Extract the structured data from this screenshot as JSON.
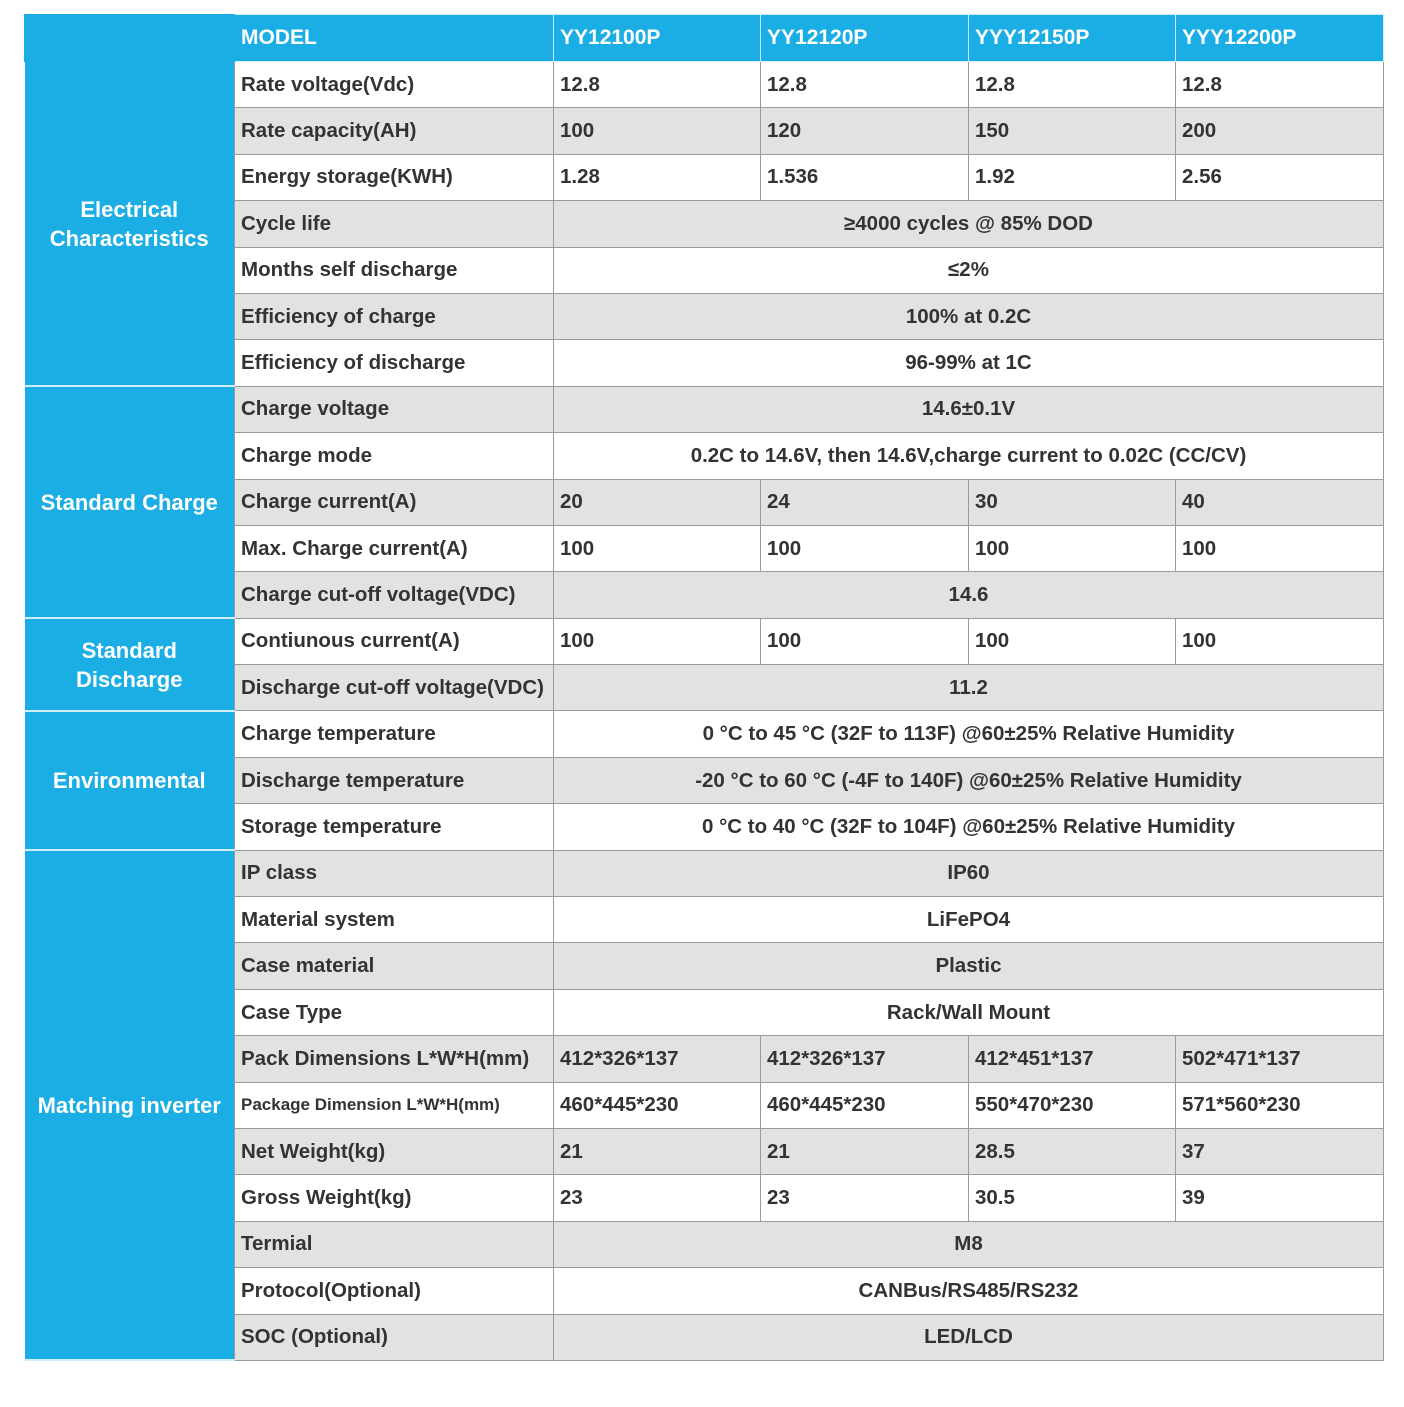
{
  "header": {
    "corner": "",
    "model_label": "MODEL",
    "models": [
      "YY12100P",
      "YY12120P",
      "YYY12150P",
      "YYY12200P"
    ]
  },
  "colors": {
    "accent": "#1aaee5",
    "row_alt": "#e2e2e2"
  },
  "categories": [
    {
      "label": "Electrical Characteristics",
      "rows": 7
    },
    {
      "label": "Standard Charge",
      "rows": 5
    },
    {
      "label": "Standard Discharge",
      "rows": 2
    },
    {
      "label": "Environmental",
      "rows": 3
    },
    {
      "label": "Matching inverter",
      "rows": 11
    }
  ],
  "rows": [
    {
      "label": "Rate voltage(Vdc)",
      "values": [
        "12.8",
        "12.8",
        "12.8",
        "12.8"
      ]
    },
    {
      "label": "Rate capacity(AH)",
      "values": [
        "100",
        "120",
        "150",
        "200"
      ]
    },
    {
      "label": "Energy storage(KWH)",
      "values": [
        "1.28",
        "1.536",
        "1.92",
        "2.56"
      ]
    },
    {
      "label": "Cycle life",
      "value": "≥4000 cycles @ 85% DOD"
    },
    {
      "label": "Months self discharge",
      "value": "≤2%"
    },
    {
      "label": "Efficiency of charge",
      "value": "100% at 0.2C"
    },
    {
      "label": "Efficiency of discharge",
      "value": "96-99% at 1C"
    },
    {
      "label": "Charge voltage",
      "value": "14.6±0.1V"
    },
    {
      "label": "Charge mode",
      "value": "0.2C to 14.6V, then 14.6V,charge current to 0.02C (CC/CV)"
    },
    {
      "label": "Charge current(A)",
      "values": [
        "20",
        "24",
        "30",
        "40"
      ]
    },
    {
      "label": "Max. Charge current(A)",
      "values": [
        "100",
        "100",
        "100",
        "100"
      ]
    },
    {
      "label": "Charge cut-off voltage(VDC)",
      "value": "14.6"
    },
    {
      "label": "Contiunous current(A)",
      "values": [
        "100",
        "100",
        "100",
        "100"
      ]
    },
    {
      "label": "Discharge cut-off voltage(VDC)",
      "value": "11.2"
    },
    {
      "label": "Charge temperature",
      "value": "0 °C to 45 °C (32F to 113F) @60±25% Relative Humidity"
    },
    {
      "label": "Discharge temperature",
      "value": "-20 °C to 60 °C (-4F to 140F) @60±25% Relative Humidity"
    },
    {
      "label": "Storage temperature",
      "value": "0 °C to 40 °C (32F to 104F) @60±25% Relative Humidity"
    },
    {
      "label": "IP class",
      "value": "IP60"
    },
    {
      "label": "Material system",
      "value": "LiFePO4"
    },
    {
      "label": "Case material",
      "value": "Plastic"
    },
    {
      "label": "Case Type",
      "value": "Rack/Wall Mount"
    },
    {
      "label": "Pack Dimensions L*W*H(mm)",
      "values": [
        "412*326*137",
        "412*326*137",
        "412*451*137",
        "502*471*137"
      ]
    },
    {
      "label": "Package Dimension L*W*H(mm)",
      "values": [
        "460*445*230",
        "460*445*230",
        "550*470*230",
        "571*560*230"
      ]
    },
    {
      "label": "Net Weight(kg)",
      "values": [
        "21",
        "21",
        "28.5",
        "37"
      ]
    },
    {
      "label": "Gross Weight(kg)",
      "values": [
        "23",
        "23",
        "30.5",
        "39"
      ]
    },
    {
      "label": "Termial",
      "value": "M8"
    },
    {
      "label": "Protocol(Optional)",
      "value": "CANBus/RS485/RS232"
    },
    {
      "label": "SOC (Optional)",
      "value": "LED/LCD"
    }
  ]
}
